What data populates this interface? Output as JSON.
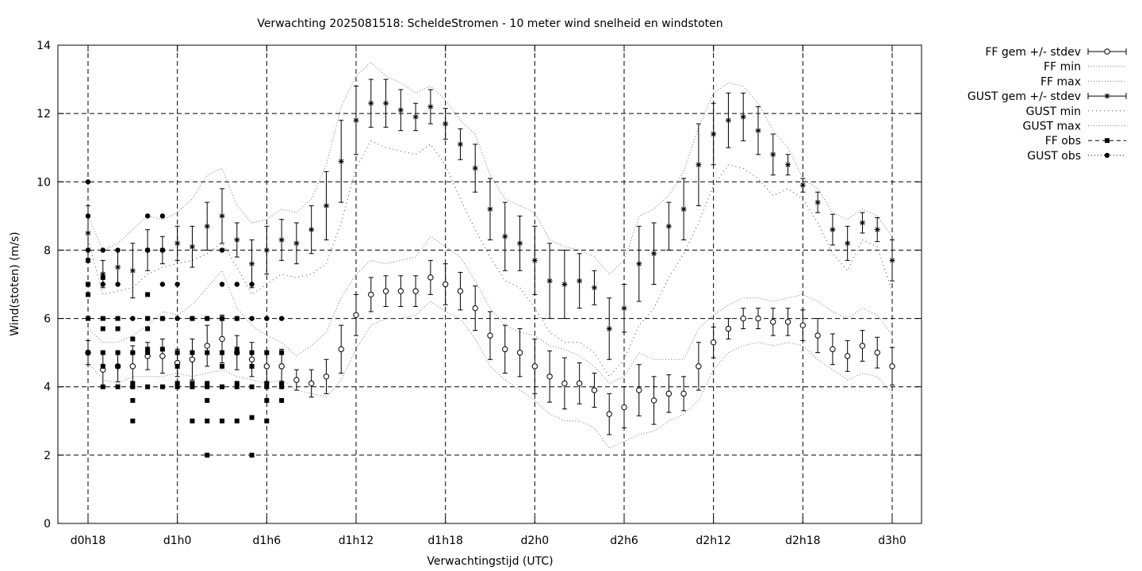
{
  "chart_data": {
    "type": "line",
    "title": "Verwachting 2025081518: ScheldeStromen - 10 meter wind snelheid en windstoten",
    "xlabel": "Verwachtingstijd (UTC)",
    "ylabel": "Wind(stoten) (m/s)",
    "ylim": [
      0,
      14
    ],
    "yticks": [
      0,
      2,
      4,
      6,
      8,
      10,
      12,
      14
    ],
    "xlim_hours": [
      18,
      75
    ],
    "xticks": [
      {
        "h": 18,
        "label": "d0h18"
      },
      {
        "h": 24,
        "label": "d1h0"
      },
      {
        "h": 30,
        "label": "d1h6"
      },
      {
        "h": 36,
        "label": "d1h12"
      },
      {
        "h": 42,
        "label": "d1h18"
      },
      {
        "h": 48,
        "label": "d2h0"
      },
      {
        "h": 54,
        "label": "d2h6"
      },
      {
        "h": 60,
        "label": "d2h12"
      },
      {
        "h": 66,
        "label": "d2h18"
      },
      {
        "h": 72,
        "label": "d3h0"
      }
    ],
    "grid": true,
    "legend_position": "outside-top-right",
    "legend": [
      {
        "key": "ff_mean",
        "label": "FF gem +/- stdev"
      },
      {
        "key": "ff_min",
        "label": "FF min"
      },
      {
        "key": "ff_max",
        "label": "FF max"
      },
      {
        "key": "gust_mean",
        "label": "GUST gem +/- stdev"
      },
      {
        "key": "gust_min",
        "label": "GUST min"
      },
      {
        "key": "gust_max",
        "label": "GUST max"
      },
      {
        "key": "ff_obs",
        "label": "FF obs"
      },
      {
        "key": "gust_obs",
        "label": "GUST obs"
      }
    ],
    "hours": [
      18,
      19,
      20,
      21,
      22,
      23,
      24,
      25,
      26,
      27,
      28,
      29,
      30,
      31,
      32,
      33,
      34,
      35,
      36,
      37,
      38,
      39,
      40,
      41,
      42,
      43,
      44,
      45,
      46,
      47,
      48,
      49,
      50,
      51,
      52,
      53,
      54,
      55,
      56,
      57,
      58,
      59,
      60,
      61,
      62,
      63,
      64,
      65,
      66,
      67,
      68,
      69,
      70,
      71,
      72
    ],
    "ff_mean": [
      5.0,
      4.5,
      4.6,
      4.6,
      4.9,
      4.9,
      4.7,
      4.8,
      5.2,
      5.4,
      5.0,
      4.8,
      4.6,
      4.6,
      4.2,
      4.1,
      4.3,
      5.1,
      6.1,
      6.7,
      6.8,
      6.8,
      6.8,
      7.2,
      7.0,
      6.8,
      6.3,
      5.5,
      5.1,
      5.0,
      4.6,
      4.3,
      4.1,
      4.1,
      3.9,
      3.2,
      3.4,
      3.9,
      3.6,
      3.8,
      3.8,
      4.6,
      5.3,
      5.7,
      6.0,
      6.0,
      5.9,
      5.9,
      5.8,
      5.5,
      5.1,
      4.9,
      5.2,
      5.0,
      4.6
    ],
    "ff_sd": [
      0.35,
      0.5,
      0.45,
      0.6,
      0.4,
      0.5,
      0.4,
      0.6,
      0.6,
      0.7,
      0.5,
      0.5,
      0.45,
      0.5,
      0.3,
      0.4,
      0.5,
      0.7,
      0.6,
      0.5,
      0.45,
      0.45,
      0.45,
      0.5,
      0.6,
      0.55,
      0.65,
      0.7,
      0.7,
      0.7,
      0.8,
      0.75,
      0.75,
      0.6,
      0.5,
      0.6,
      0.6,
      0.75,
      0.7,
      0.55,
      0.5,
      0.7,
      0.45,
      0.3,
      0.3,
      0.3,
      0.4,
      0.4,
      0.45,
      0.5,
      0.45,
      0.45,
      0.45,
      0.45,
      0.55
    ],
    "ff_min": [
      4.7,
      4.2,
      4.1,
      4.3,
      4.3,
      4.3,
      4.4,
      4.3,
      4.4,
      4.5,
      4.3,
      4.2,
      4.1,
      4.2,
      3.9,
      3.8,
      3.7,
      4.2,
      5.1,
      5.8,
      6.0,
      6.0,
      6.1,
      6.5,
      6.2,
      6.0,
      5.4,
      4.6,
      4.2,
      3.9,
      3.6,
      3.2,
      3.0,
      3.0,
      2.8,
      2.2,
      2.4,
      2.6,
      2.7,
      3.0,
      3.2,
      3.6,
      4.5,
      5.0,
      5.2,
      5.3,
      5.2,
      5.3,
      5.2,
      4.8,
      4.5,
      4.2,
      4.4,
      4.3,
      3.8
    ],
    "ff_max": [
      5.7,
      5.3,
      5.3,
      5.5,
      5.8,
      6.2,
      6.1,
      6.4,
      6.9,
      7.4,
      6.3,
      5.8,
      5.5,
      5.3,
      4.9,
      5.2,
      5.6,
      6.6,
      7.3,
      7.7,
      7.6,
      7.7,
      7.8,
      8.4,
      8.1,
      7.8,
      7.1,
      6.3,
      5.8,
      5.6,
      5.5,
      5.2,
      5.1,
      4.9,
      4.6,
      4.1,
      4.3,
      5.0,
      4.8,
      4.8,
      4.8,
      5.7,
      6.1,
      6.4,
      6.6,
      6.6,
      6.5,
      6.6,
      6.7,
      6.5,
      6.2,
      6.0,
      6.3,
      6.1,
      5.5
    ],
    "gust_mean": [
      8.5,
      7.3,
      7.5,
      7.4,
      8.0,
      8.0,
      8.2,
      8.1,
      8.7,
      9.0,
      8.3,
      7.6,
      8.0,
      8.3,
      8.2,
      8.6,
      9.3,
      10.6,
      11.8,
      12.3,
      12.3,
      12.1,
      11.9,
      12.2,
      11.7,
      11.1,
      10.4,
      9.2,
      8.4,
      8.2,
      7.7,
      7.1,
      7.0,
      7.1,
      6.9,
      5.7,
      6.3,
      7.6,
      7.9,
      8.7,
      9.2,
      10.5,
      11.4,
      11.8,
      11.9,
      11.5,
      10.8,
      10.5,
      9.9,
      9.4,
      8.6,
      8.2,
      8.8,
      8.6,
      7.7
    ],
    "gust_sd": [
      0.8,
      0.4,
      0.5,
      0.8,
      0.6,
      0.4,
      0.5,
      0.6,
      0.7,
      0.8,
      0.5,
      0.7,
      0.7,
      0.6,
      0.6,
      0.7,
      1.0,
      1.2,
      1.0,
      0.7,
      0.7,
      0.6,
      0.4,
      0.5,
      0.45,
      0.45,
      0.7,
      0.9,
      1.0,
      0.8,
      1.0,
      1.1,
      1.0,
      0.8,
      0.5,
      0.9,
      0.7,
      1.1,
      0.9,
      0.7,
      0.9,
      1.2,
      0.9,
      0.8,
      0.7,
      0.7,
      0.6,
      0.3,
      0.2,
      0.3,
      0.45,
      0.5,
      0.3,
      0.35,
      0.6
    ],
    "gust_min": [
      8.3,
      6.7,
      6.8,
      6.9,
      7.3,
      7.5,
      7.6,
      7.7,
      7.9,
      8.2,
      7.5,
      6.7,
      7.0,
      7.3,
      7.2,
      7.3,
      7.6,
      8.8,
      10.4,
      11.2,
      11.0,
      10.9,
      10.8,
      11.1,
      10.5,
      9.5,
      8.6,
      7.8,
      7.1,
      6.9,
      6.3,
      5.6,
      5.3,
      5.3,
      5.0,
      4.3,
      4.8,
      5.8,
      6.3,
      7.2,
      7.9,
      8.8,
      9.9,
      10.5,
      10.4,
      10.1,
      9.6,
      9.8,
      9.5,
      8.8,
      7.9,
      7.4,
      8.3,
      8.1,
      6.8
    ],
    "gust_max": [
      9.0,
      8.0,
      8.2,
      8.6,
      9.0,
      8.9,
      9.1,
      9.5,
      10.2,
      10.4,
      9.3,
      8.8,
      8.9,
      9.2,
      9.1,
      9.5,
      10.5,
      12.2,
      13.1,
      13.5,
      13.1,
      12.9,
      12.6,
      12.8,
      12.4,
      11.8,
      11.4,
      10.2,
      9.5,
      9.3,
      9.1,
      8.3,
      8.1,
      8.0,
      7.8,
      7.3,
      7.7,
      9.0,
      9.2,
      9.6,
      10.3,
      11.6,
      12.6,
      12.9,
      12.8,
      12.3,
      11.5,
      11.0,
      10.1,
      9.8,
      9.1,
      8.9,
      9.2,
      9.0,
      8.4
    ],
    "ff_obs": [
      [
        18,
        7.7
      ],
      [
        18,
        7.0
      ],
      [
        18,
        6.7
      ],
      [
        18,
        6.0
      ],
      [
        18,
        5.0
      ],
      [
        19,
        7.2
      ],
      [
        19,
        6.0
      ],
      [
        19,
        5.7
      ],
      [
        19,
        5.0
      ],
      [
        19,
        4.6
      ],
      [
        19,
        4.0
      ],
      [
        20,
        6.0
      ],
      [
        20,
        5.7
      ],
      [
        20,
        5.0
      ],
      [
        20,
        4.6
      ],
      [
        20,
        4.0
      ],
      [
        21,
        5.4
      ],
      [
        21,
        5.0
      ],
      [
        21,
        4.1
      ],
      [
        21,
        4.0
      ],
      [
        21,
        3.6
      ],
      [
        21,
        3.0
      ],
      [
        22,
        6.7
      ],
      [
        22,
        6.0
      ],
      [
        22,
        5.7
      ],
      [
        22,
        5.1
      ],
      [
        22,
        5.0
      ],
      [
        22,
        4.0
      ],
      [
        23,
        6.0
      ],
      [
        23,
        5.1
      ],
      [
        23,
        4.0
      ],
      [
        24,
        5.0
      ],
      [
        24,
        4.6
      ],
      [
        24,
        4.1
      ],
      [
        24,
        4.0
      ],
      [
        25,
        6.0
      ],
      [
        25,
        5.0
      ],
      [
        25,
        4.1
      ],
      [
        25,
        4.0
      ],
      [
        25,
        3.0
      ],
      [
        26,
        6.0
      ],
      [
        26,
        5.0
      ],
      [
        26,
        4.1
      ],
      [
        26,
        4.0
      ],
      [
        26,
        3.6
      ],
      [
        26,
        3.0
      ],
      [
        26,
        2.0
      ],
      [
        27,
        6.0
      ],
      [
        27,
        5.0
      ],
      [
        27,
        4.6
      ],
      [
        27,
        4.0
      ],
      [
        27,
        3.0
      ],
      [
        28,
        6.0
      ],
      [
        28,
        5.1
      ],
      [
        28,
        5.0
      ],
      [
        28,
        4.1
      ],
      [
        28,
        4.0
      ],
      [
        28,
        3.0
      ],
      [
        29,
        5.0
      ],
      [
        29,
        4.6
      ],
      [
        29,
        4.0
      ],
      [
        29,
        3.1
      ],
      [
        29,
        2.0
      ],
      [
        30,
        5.0
      ],
      [
        30,
        4.1
      ],
      [
        30,
        4.0
      ],
      [
        30,
        3.6
      ],
      [
        30,
        3.0
      ],
      [
        31,
        5.0
      ],
      [
        31,
        4.1
      ],
      [
        31,
        4.0
      ],
      [
        31,
        3.6
      ]
    ],
    "gust_obs": [
      [
        18,
        10.0
      ],
      [
        18,
        9.0
      ],
      [
        18,
        8.0
      ],
      [
        18,
        7.0
      ],
      [
        19,
        8.0
      ],
      [
        19,
        7.0
      ],
      [
        20,
        8.0
      ],
      [
        20,
        7.0
      ],
      [
        20,
        5.0
      ],
      [
        21,
        6.0
      ],
      [
        21,
        5.0
      ],
      [
        22,
        9.0
      ],
      [
        22,
        8.0
      ],
      [
        22,
        6.0
      ],
      [
        23,
        9.0
      ],
      [
        23,
        8.0
      ],
      [
        23,
        7.0
      ],
      [
        23,
        6.0
      ],
      [
        24,
        7.0
      ],
      [
        24,
        6.0
      ],
      [
        25,
        6.0
      ],
      [
        26,
        6.0
      ],
      [
        27,
        8.0
      ],
      [
        27,
        7.0
      ],
      [
        27,
        6.0
      ],
      [
        28,
        7.0
      ],
      [
        28,
        6.0
      ],
      [
        29,
        7.0
      ],
      [
        29,
        6.0
      ],
      [
        30,
        6.0
      ],
      [
        31,
        6.0
      ]
    ]
  }
}
